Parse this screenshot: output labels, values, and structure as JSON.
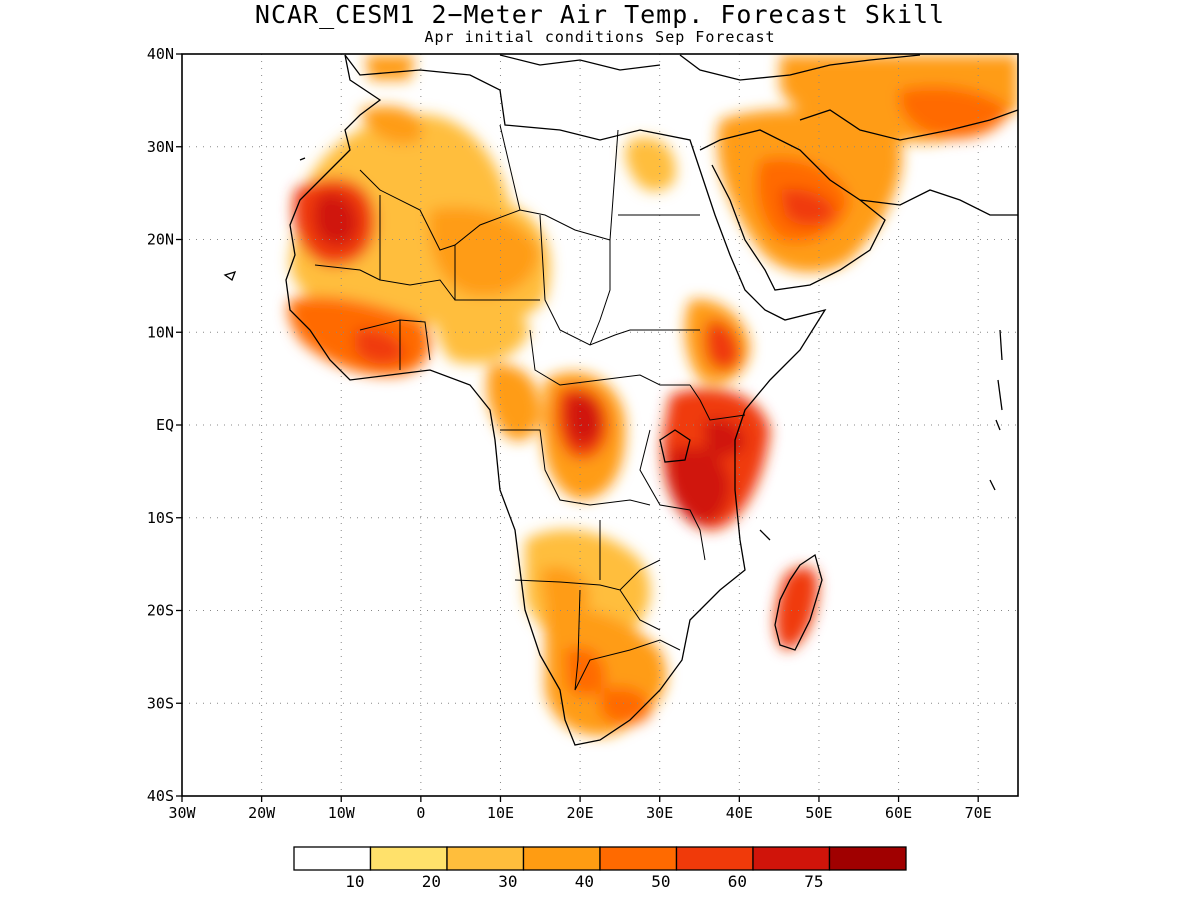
{
  "title": "NCAR_CESM1 2−Meter Air Temp. Forecast Skill",
  "subtitle": "Apr initial conditions  Sep Forecast",
  "lat_ticks": [
    {
      "value": 40,
      "label": "40N"
    },
    {
      "value": 30,
      "label": "30N"
    },
    {
      "value": 20,
      "label": "20N"
    },
    {
      "value": 10,
      "label": "10N"
    },
    {
      "value": 0,
      "label": "EQ"
    },
    {
      "value": -10,
      "label": "10S"
    },
    {
      "value": -20,
      "label": "20S"
    },
    {
      "value": -30,
      "label": "30S"
    },
    {
      "value": -40,
      "label": "40S"
    }
  ],
  "lon_ticks": [
    {
      "value": -30,
      "label": "30W"
    },
    {
      "value": -20,
      "label": "20W"
    },
    {
      "value": -10,
      "label": "10W"
    },
    {
      "value": 0,
      "label": "0"
    },
    {
      "value": 10,
      "label": "10E"
    },
    {
      "value": 20,
      "label": "20E"
    },
    {
      "value": 30,
      "label": "30E"
    },
    {
      "value": 40,
      "label": "40E"
    },
    {
      "value": 50,
      "label": "50E"
    },
    {
      "value": 60,
      "label": "60E"
    },
    {
      "value": 70,
      "label": "70E"
    }
  ],
  "extent": {
    "lon": [
      -30,
      75
    ],
    "lat": [
      -40,
      40
    ]
  },
  "colorbar": {
    "colors": [
      "#ffffff",
      "#ffe16b",
      "#ffbe3c",
      "#ff9c12",
      "#ff6a00",
      "#f03a0a",
      "#d0140a",
      "#a00000"
    ],
    "labels": [
      "10",
      "20",
      "30",
      "40",
      "50",
      "60",
      "75"
    ]
  },
  "colors": {
    "land_outline": "#000000",
    "grid": "#888888"
  }
}
